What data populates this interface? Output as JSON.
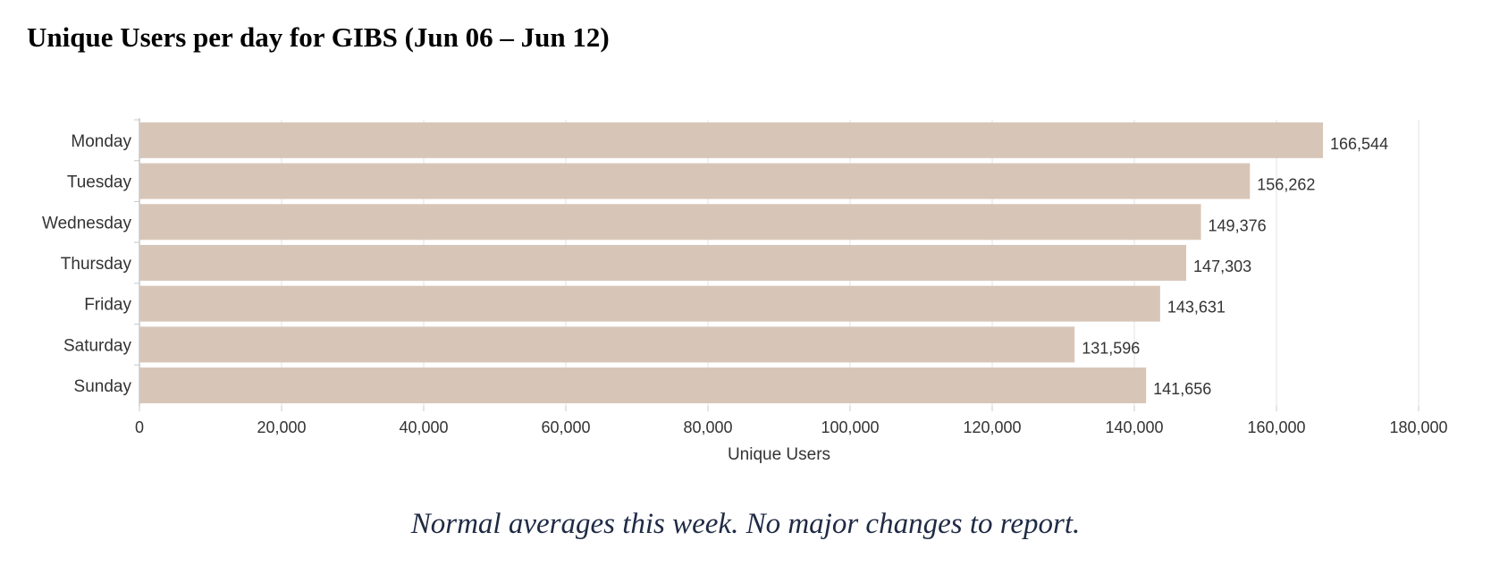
{
  "report": {
    "title": "Unique Users per day for GIBS (Jun 06 – Jun 12)",
    "note": "Normal averages this week.  No major changes to report."
  },
  "colors": {
    "bar": "#d7c6b8",
    "grid": "#e3e3e3",
    "axis": "#c8c8c8",
    "text": "#333333"
  },
  "chart_data": {
    "type": "bar",
    "orientation": "horizontal",
    "categories": [
      "Monday",
      "Tuesday",
      "Wednesday",
      "Thursday",
      "Friday",
      "Saturday",
      "Sunday"
    ],
    "values": [
      166544,
      156262,
      149376,
      147303,
      143631,
      131596,
      141656
    ],
    "value_labels": [
      "166,544",
      "156,262",
      "149,376",
      "147,303",
      "143,631",
      "131,596",
      "141,656"
    ],
    "xlabel": "Unique Users",
    "ylabel": "",
    "xlim": [
      0,
      180000
    ],
    "ticks": [
      0,
      20000,
      40000,
      60000,
      80000,
      100000,
      120000,
      140000,
      160000,
      180000
    ],
    "tick_labels": [
      "0",
      "20,000",
      "40,000",
      "60,000",
      "80,000",
      "100,000",
      "120,000",
      "140,000",
      "160,000",
      "180,000"
    ],
    "grid": true,
    "legend": "none"
  }
}
